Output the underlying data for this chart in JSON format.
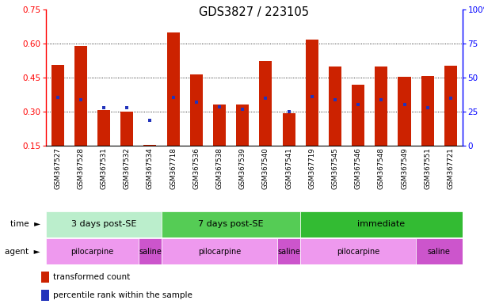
{
  "title": "GDS3827 / 223105",
  "samples": [
    "GSM367527",
    "GSM367528",
    "GSM367531",
    "GSM367532",
    "GSM367534",
    "GSM367718",
    "GSM367536",
    "GSM367538",
    "GSM367539",
    "GSM367540",
    "GSM367541",
    "GSM367719",
    "GSM367545",
    "GSM367546",
    "GSM367548",
    "GSM367549",
    "GSM367551",
    "GSM367721"
  ],
  "bar_tops": [
    0.505,
    0.59,
    0.308,
    0.3,
    0.155,
    0.648,
    0.462,
    0.333,
    0.333,
    0.523,
    0.295,
    0.618,
    0.5,
    0.42,
    0.5,
    0.453,
    0.458,
    0.502
  ],
  "bar_base": 0.15,
  "blue_vals": [
    0.362,
    0.352,
    0.318,
    0.318,
    0.263,
    0.362,
    0.342,
    0.322,
    0.312,
    0.358,
    0.302,
    0.368,
    0.352,
    0.332,
    0.352,
    0.332,
    0.318,
    0.358
  ],
  "ylim_left": [
    0.15,
    0.75
  ],
  "ylim_right": [
    0,
    100
  ],
  "yticks_left": [
    0.15,
    0.3,
    0.45,
    0.6,
    0.75
  ],
  "yticks_right": [
    0,
    25,
    50,
    75,
    100
  ],
  "bar_color": "#cc2200",
  "blue_color": "#2233bb",
  "tick_bg_color": "#d0d0d0",
  "time_colors": [
    "#bbeecc",
    "#55cc55",
    "#33bb33"
  ],
  "time_groups": [
    {
      "label": "3 days post-SE",
      "start": 0,
      "end": 5
    },
    {
      "label": "7 days post-SE",
      "start": 5,
      "end": 11
    },
    {
      "label": "immediate",
      "start": 11,
      "end": 18
    }
  ],
  "agent_groups": [
    {
      "label": "pilocarpine",
      "start": 0,
      "end": 4,
      "color": "#ee99ee"
    },
    {
      "label": "saline",
      "start": 4,
      "end": 5,
      "color": "#cc55cc"
    },
    {
      "label": "pilocarpine",
      "start": 5,
      "end": 10,
      "color": "#ee99ee"
    },
    {
      "label": "saline",
      "start": 10,
      "end": 11,
      "color": "#cc55cc"
    },
    {
      "label": "pilocarpine",
      "start": 11,
      "end": 16,
      "color": "#ee99ee"
    },
    {
      "label": "saline",
      "start": 16,
      "end": 18,
      "color": "#cc55cc"
    }
  ],
  "legend_items": [
    {
      "label": "transformed count",
      "color": "#cc2200"
    },
    {
      "label": "percentile rank within the sample",
      "color": "#2233bb"
    }
  ],
  "n_samples": 18
}
